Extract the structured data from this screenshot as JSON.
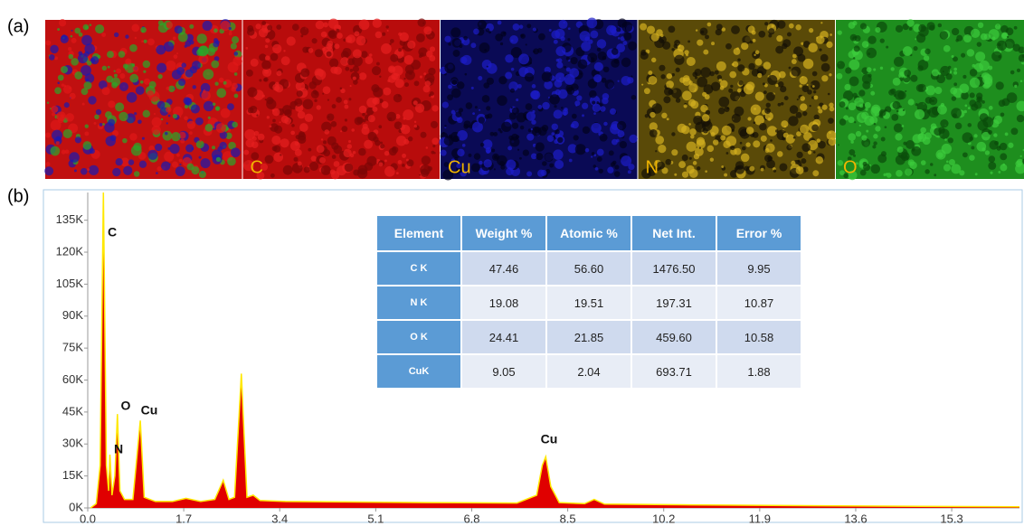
{
  "panel_labels": [
    "(a)",
    "(b)"
  ],
  "maps": [
    "C",
    "Cu",
    "N",
    "O"
  ],
  "chart_data": {
    "type": "area",
    "x": [
      0.05,
      0.15,
      0.22,
      0.277,
      0.33,
      0.37,
      0.392,
      0.43,
      0.48,
      0.525,
      0.57,
      0.65,
      0.8,
      0.93,
      1.0,
      1.2,
      1.5,
      1.74,
      2.0,
      2.25,
      2.4,
      2.5,
      2.6,
      2.72,
      2.82,
      2.93,
      3.05,
      3.5,
      4.5,
      6.0,
      7.6,
      7.95,
      8.05,
      8.11,
      8.2,
      8.35,
      8.8,
      8.97,
      9.15,
      10.5,
      13.0,
      16.5
    ],
    "series": [
      {
        "color": "#e00000",
        "values": [
          0,
          2000,
          20000,
          148000,
          20000,
          8000,
          25000,
          6000,
          15000,
          44000,
          8000,
          4000,
          4000,
          41000,
          5000,
          3000,
          3000,
          4500,
          3000,
          4000,
          13000,
          4000,
          5000,
          63000,
          5000,
          6000,
          3500,
          3000,
          2800,
          2500,
          2300,
          6000,
          20000,
          24000,
          10000,
          2500,
          2000,
          4000,
          1800,
          1500,
          1000,
          500
        ]
      }
    ],
    "line_color": "#ffe800",
    "annotations": [
      "C",
      "N",
      "O",
      "Cu",
      "Cu"
    ],
    "xlim": [
      0,
      16.5
    ],
    "xticks": [
      {
        "value": 0,
        "label": "0.0"
      },
      1.7,
      3.4,
      5.1,
      6.8,
      8.5,
      10.2,
      11.9,
      13.6,
      15.3
    ],
    "ylim": [
      0,
      148000
    ],
    "yticks": [
      {
        "value": 0,
        "label": "0K"
      },
      {
        "value": 15000,
        "label": "15K"
      },
      {
        "value": 30000,
        "label": "30K"
      },
      {
        "value": 45000,
        "label": "45K"
      },
      {
        "value": 60000,
        "label": "60K"
      },
      {
        "value": 75000,
        "label": "75K"
      },
      {
        "value": 90000,
        "label": "90K"
      },
      {
        "value": 105000,
        "label": "105K"
      },
      {
        "value": 120000,
        "label": "120K"
      },
      {
        "value": 135000,
        "label": "135K"
      }
    ]
  },
  "table": {
    "header": [
      "Element",
      "Weight %",
      "Atomic %",
      "Net Int.",
      "Error %"
    ],
    "rows": [
      [
        "C K",
        "47.46",
        "56.60",
        "1476.50",
        "9.95"
      ],
      [
        "N K",
        "19.08",
        "19.51",
        "197.31",
        "10.87"
      ],
      [
        "O K",
        "24.41",
        "21.85",
        "459.60",
        "10.58"
      ],
      [
        "CuK",
        "9.05",
        "2.04",
        "693.71",
        "1.88"
      ]
    ]
  }
}
